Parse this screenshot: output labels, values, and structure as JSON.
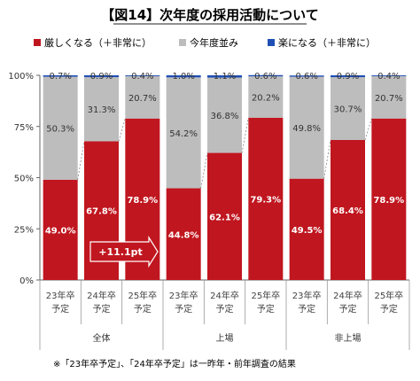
{
  "chart_data": {
    "type": "bar",
    "title": "【図14】次年度の採用活動について",
    "stacked": true,
    "ylim": [
      0,
      100
    ],
    "yticks": [
      "0%",
      "25%",
      "50%",
      "75%",
      "100%"
    ],
    "categories": [
      "23年卒\n予定",
      "24年卒\n予定",
      "25年卒\n予定",
      "23年卒\n予定",
      "24年卒\n予定",
      "25年卒\n予定",
      "23年卒\n予定",
      "24年卒\n予定",
      "25年卒\n予定"
    ],
    "groups": [
      {
        "label": "全体",
        "count": 3
      },
      {
        "label": "上場",
        "count": 3
      },
      {
        "label": "非上場",
        "count": 3
      }
    ],
    "series": [
      {
        "name": "厳しくなる（＋非常に）",
        "color": "#c0161f",
        "values": [
          49.0,
          67.8,
          78.9,
          44.8,
          62.1,
          79.3,
          49.5,
          68.4,
          78.9
        ],
        "labels": [
          "49.0%",
          "67.8%",
          "78.9%",
          "44.8%",
          "62.1%",
          "79.3%",
          "49.5%",
          "68.4%",
          "78.9%"
        ]
      },
      {
        "name": "今年度並み",
        "color": "#bdbdbd",
        "values": [
          50.3,
          31.3,
          20.7,
          54.2,
          36.8,
          20.2,
          49.8,
          30.7,
          20.7
        ],
        "labels": [
          "50.3%",
          "31.3%",
          "20.7%",
          "54.2%",
          "36.8%",
          "20.2%",
          "49.8%",
          "30.7%",
          "20.7%"
        ]
      },
      {
        "name": "楽になる（＋非常に）",
        "color": "#1f4fb5",
        "values": [
          0.7,
          0.9,
          0.4,
          1.0,
          1.1,
          0.6,
          0.6,
          0.9,
          0.4
        ],
        "labels": [
          "0.7%",
          "0.9%",
          "0.4%",
          "1.0%",
          "1.1%",
          "0.6%",
          "0.6%",
          "0.9%",
          "0.4%"
        ]
      }
    ],
    "annotation": {
      "text": "+11.1pt",
      "color": "#c0161f"
    },
    "footnote": "※「23年卒予定」、「24年卒予定」は一昨年・前年調査の結果",
    "grid": false,
    "legend_position": "top"
  }
}
